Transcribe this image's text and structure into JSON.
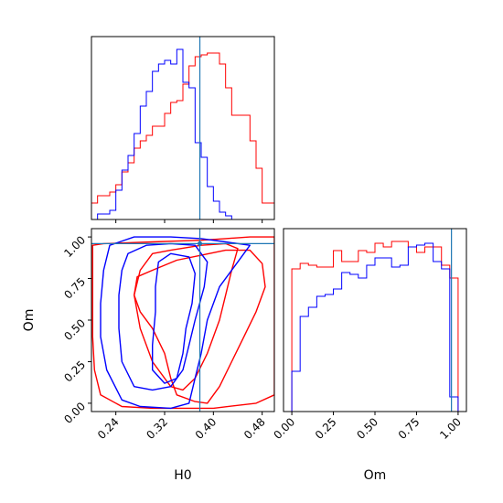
{
  "chart_data": [
    {
      "type": "histogram",
      "panel": "H0 marginal",
      "xlim": [
        0.2,
        0.5
      ],
      "truth": 0.3778,
      "truth_color": "#1f77b4",
      "bin_edges": [
        0.2,
        0.21,
        0.22,
        0.23,
        0.24,
        0.25,
        0.26,
        0.27,
        0.28,
        0.29,
        0.3,
        0.31,
        0.32,
        0.33,
        0.34,
        0.35,
        0.36,
        0.37,
        0.38,
        0.39,
        0.4,
        0.41,
        0.42,
        0.43,
        0.44,
        0.45,
        0.46,
        0.47,
        0.48,
        0.49,
        0.5
      ],
      "series": [
        {
          "color": "#ff0000",
          "values": [
            0.09,
            0.13,
            0.13,
            0.15,
            0.19,
            0.26,
            0.31,
            0.39,
            0.43,
            0.46,
            0.51,
            0.51,
            0.58,
            0.64,
            0.65,
            0.74,
            0.84,
            0.89,
            0.9,
            0.91,
            0.91,
            0.85,
            0.72,
            0.57,
            0.57,
            0.57,
            0.43,
            0.28,
            0.09,
            0.09
          ]
        },
        {
          "color": "#0000ff",
          "values": [
            0.0,
            0.03,
            0.03,
            0.05,
            0.16,
            0.27,
            0.35,
            0.47,
            0.62,
            0.7,
            0.81,
            0.85,
            0.87,
            0.85,
            0.93,
            0.75,
            0.72,
            0.42,
            0.34,
            0.18,
            0.1,
            0.04,
            0.02,
            0.0,
            0.0,
            0.0,
            0.0,
            0.0,
            0.0,
            0.0
          ]
        }
      ]
    },
    {
      "type": "contour",
      "panel": "H0 vs Om",
      "xlabel": "H0",
      "ylabel": "Om",
      "xlim": [
        0.2,
        0.5
      ],
      "ylim": [
        -0.05,
        1.05
      ],
      "xticks": [
        "0.24",
        "0.32",
        "0.40",
        "0.48"
      ],
      "yticks": [
        "0.00",
        "0.25",
        "0.50",
        "0.75",
        "1.00"
      ],
      "truth": {
        "H0": 0.3778,
        "Om": 0.96
      },
      "series": [
        {
          "color": "#ff0000",
          "levels": [
            [
              [
                0.202,
                0.95
              ],
              [
                0.22,
                0.96
              ],
              [
                0.26,
                0.965
              ],
              [
                0.3,
                0.97
              ],
              [
                0.34,
                0.975
              ],
              [
                0.38,
                0.98
              ],
              [
                0.42,
                0.99
              ],
              [
                0.46,
                1.0
              ],
              [
                0.5,
                1.0
              ],
              [
                0.5,
                0.05
              ],
              [
                0.47,
                0.0
              ],
              [
                0.4,
                -0.03
              ],
              [
                0.35,
                -0.03
              ],
              [
                0.3,
                -0.03
              ],
              [
                0.25,
                -0.02
              ],
              [
                0.215,
                0.05
              ],
              [
                0.205,
                0.2
              ],
              [
                0.202,
                0.4
              ],
              [
                0.202,
                0.6
              ],
              [
                0.202,
                0.8
              ]
            ],
            [
              [
                0.275,
                0.76
              ],
              [
                0.3,
                0.8
              ],
              [
                0.34,
                0.86
              ],
              [
                0.38,
                0.89
              ],
              [
                0.42,
                0.92
              ],
              [
                0.46,
                0.92
              ],
              [
                0.48,
                0.84
              ],
              [
                0.485,
                0.7
              ],
              [
                0.47,
                0.55
              ],
              [
                0.45,
                0.4
              ],
              [
                0.43,
                0.25
              ],
              [
                0.41,
                0.1
              ],
              [
                0.39,
                0.0
              ],
              [
                0.37,
                0.01
              ],
              [
                0.34,
                0.05
              ],
              [
                0.33,
                0.15
              ],
              [
                0.32,
                0.3
              ],
              [
                0.3,
                0.45
              ],
              [
                0.28,
                0.55
              ],
              [
                0.27,
                0.65
              ]
            ],
            [
              [
                0.3,
                0.9
              ],
              [
                0.33,
                0.92
              ],
              [
                0.38,
                0.95
              ],
              [
                0.42,
                0.96
              ],
              [
                0.44,
                0.93
              ],
              [
                0.43,
                0.8
              ],
              [
                0.42,
                0.65
              ],
              [
                0.41,
                0.5
              ],
              [
                0.39,
                0.3
              ],
              [
                0.37,
                0.15
              ],
              [
                0.35,
                0.08
              ],
              [
                0.33,
                0.1
              ],
              [
                0.3,
                0.25
              ],
              [
                0.28,
                0.45
              ],
              [
                0.27,
                0.65
              ],
              [
                0.28,
                0.8
              ]
            ]
          ]
        },
        {
          "color": "#0000ff",
          "levels": [
            [
              [
                0.23,
                0.95
              ],
              [
                0.27,
                1.0
              ],
              [
                0.33,
                1.0
              ],
              [
                0.38,
                0.99
              ],
              [
                0.42,
                0.97
              ],
              [
                0.46,
                0.95
              ],
              [
                0.44,
                0.85
              ],
              [
                0.41,
                0.7
              ],
              [
                0.39,
                0.5
              ],
              [
                0.38,
                0.3
              ],
              [
                0.37,
                0.15
              ],
              [
                0.36,
                0.0
              ],
              [
                0.33,
                -0.03
              ],
              [
                0.28,
                -0.02
              ],
              [
                0.25,
                0.02
              ],
              [
                0.225,
                0.2
              ],
              [
                0.215,
                0.4
              ],
              [
                0.215,
                0.6
              ],
              [
                0.22,
                0.8
              ]
            ],
            [
              [
                0.26,
                0.9
              ],
              [
                0.29,
                0.95
              ],
              [
                0.33,
                0.96
              ],
              [
                0.37,
                0.95
              ],
              [
                0.39,
                0.85
              ],
              [
                0.385,
                0.7
              ],
              [
                0.37,
                0.5
              ],
              [
                0.36,
                0.35
              ],
              [
                0.35,
                0.2
              ],
              [
                0.33,
                0.1
              ],
              [
                0.3,
                0.08
              ],
              [
                0.27,
                0.1
              ],
              [
                0.25,
                0.25
              ],
              [
                0.245,
                0.45
              ],
              [
                0.245,
                0.65
              ],
              [
                0.25,
                0.8
              ]
            ],
            [
              [
                0.31,
                0.85
              ],
              [
                0.33,
                0.9
              ],
              [
                0.36,
                0.88
              ],
              [
                0.37,
                0.78
              ],
              [
                0.365,
                0.6
              ],
              [
                0.355,
                0.45
              ],
              [
                0.35,
                0.3
              ],
              [
                0.34,
                0.15
              ],
              [
                0.32,
                0.12
              ],
              [
                0.3,
                0.2
              ],
              [
                0.3,
                0.35
              ],
              [
                0.305,
                0.55
              ],
              [
                0.305,
                0.7
              ]
            ]
          ]
        }
      ]
    },
    {
      "type": "histogram",
      "panel": "Om marginal",
      "xlabel": "Om",
      "xlim": [
        -0.05,
        1.05
      ],
      "xticks": [
        "0.00",
        "0.25",
        "0.50",
        "0.75",
        "1.00"
      ],
      "truth": 0.96,
      "truth_color": "#1f77b4",
      "bin_edges": [
        0.0,
        0.05,
        0.1,
        0.15,
        0.2,
        0.25,
        0.3,
        0.35,
        0.4,
        0.45,
        0.5,
        0.55,
        0.6,
        0.65,
        0.7,
        0.75,
        0.8,
        0.85,
        0.9,
        0.95,
        1.0
      ],
      "series": [
        {
          "color": "#ff0000",
          "values": [
            0.78,
            0.81,
            0.8,
            0.79,
            0.79,
            0.88,
            0.82,
            0.82,
            0.88,
            0.87,
            0.92,
            0.9,
            0.93,
            0.93,
            0.9,
            0.87,
            0.9,
            0.9,
            0.8,
            0.73
          ]
        },
        {
          "color": "#0000ff",
          "values": [
            0.22,
            0.52,
            0.57,
            0.63,
            0.64,
            0.67,
            0.76,
            0.75,
            0.73,
            0.8,
            0.84,
            0.84,
            0.79,
            0.8,
            0.9,
            0.91,
            0.92,
            0.82,
            0.78,
            0.08
          ]
        }
      ]
    }
  ]
}
